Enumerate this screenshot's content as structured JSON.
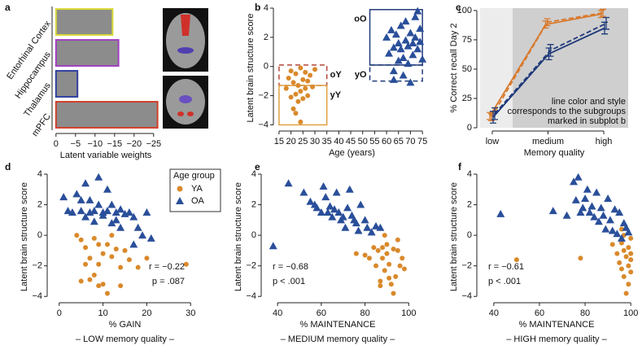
{
  "chart_data": [
    {
      "panel": "a",
      "type": "bar",
      "orientation": "horizontal",
      "categories": [
        "Entorhinal Cortex",
        "Hippocampus",
        "Thalamus",
        "mPFC"
      ],
      "values": [
        -14.5,
        -16,
        -5.5,
        -26
      ],
      "edge_colors": [
        "#d9d93a",
        "#a040c0",
        "#3040a0",
        "#d0402a"
      ],
      "color": "#8c8c8c",
      "xlabel": "Latent variable weights",
      "xlim": [
        1,
        -26.5
      ],
      "xticks": [
        0,
        {
          "value": -5,
          "label": "−5"
        },
        {
          "value": -10,
          "label": "−10"
        },
        {
          "value": -15,
          "label": "−15"
        },
        {
          "value": -20,
          "label": "−20"
        },
        {
          "value": -25,
          "label": "−25"
        }
      ]
    },
    {
      "panel": "b",
      "type": "scatter",
      "xlabel": "Age (years)",
      "ylabel": "Latent brain structure  score",
      "xlim": [
        14,
        77
      ],
      "xticks": [
        15,
        20,
        25,
        30,
        35,
        40,
        45,
        50,
        55,
        60,
        65,
        70,
        75
      ],
      "ylim": [
        -4.2,
        4
      ],
      "yticks": [
        {
          "value": -4,
          "label": "−4"
        },
        {
          "value": -2,
          "label": "−2"
        },
        0,
        2,
        4
      ],
      "series": [
        {
          "color": "#d9892b",
          "marker": "circle",
          "x": [
            18,
            19,
            20,
            20,
            21,
            21,
            22,
            22,
            23,
            23,
            24,
            24,
            24,
            25,
            25,
            26,
            26,
            27,
            27,
            28,
            29,
            30,
            22
          ],
          "y": [
            -1.5,
            -0.8,
            -2.1,
            -0.3,
            -1.1,
            -2.9,
            -1.9,
            -0.5,
            -2.4,
            -1.3,
            -0.1,
            -1.7,
            -3.8,
            -0.9,
            -2.2,
            -1.5,
            -0.4,
            -2.0,
            -1.0,
            -0.6,
            -1.4,
            -0.2,
            -3.2
          ]
        },
        {
          "color": "#2a4f9a",
          "marker": "triangle",
          "x": [
            60,
            61,
            62,
            63,
            63,
            64,
            65,
            65,
            66,
            66,
            67,
            67,
            68,
            68,
            69,
            69,
            70,
            70,
            71,
            71,
            72,
            72,
            73,
            73,
            74,
            74,
            75,
            63
          ],
          "y": [
            2.0,
            0.9,
            2.5,
            1.3,
            -0.3,
            2.2,
            1.6,
            0.4,
            2.8,
            1.2,
            0.6,
            -0.6,
            1.8,
            3.1,
            1.4,
            0.2,
            2.3,
            -1.1,
            1.6,
            0.8,
            3.4,
            2.0,
            1.2,
            3.8,
            2.6,
            1.7,
            0.5,
            -0.9
          ]
        }
      ],
      "boxes": [
        {
          "label": "oY",
          "color": "#b5483a",
          "dashed": true,
          "xlim": [
            15,
            35
          ],
          "ylim": [
            -1.3,
            0.1
          ]
        },
        {
          "label": "yY",
          "color": "#e0a040",
          "dashed": false,
          "xlim": [
            15,
            35
          ],
          "ylim": [
            -4,
            -1.3
          ]
        },
        {
          "label": "oO",
          "color": "#1f3a7a",
          "dashed": false,
          "xlim": [
            53,
            75
          ],
          "ylim": [
            0.1,
            3.9
          ]
        },
        {
          "label": "yO",
          "color": "#1f3a7a",
          "dashed": true,
          "xlim": [
            53,
            75
          ],
          "ylim": [
            -1,
            0.1
          ]
        }
      ]
    },
    {
      "panel": "c",
      "type": "line",
      "categories": [
        "low",
        "medium",
        "high"
      ],
      "xlabel": "Memory quality",
      "ylabel": "% Correct recall Day 2",
      "ylim": [
        0,
        102
      ],
      "yticks": [
        0,
        25,
        50,
        75,
        100
      ],
      "annotation": [
        "line color and style",
        "corresponds to the subgroups",
        "marked in subplot b"
      ],
      "series": [
        {
          "color": "#d9792b",
          "dashed": false,
          "values": [
            10,
            88,
            97
          ],
          "errors": [
            3,
            3,
            3
          ]
        },
        {
          "color": "#d9792b",
          "dashed": true,
          "values": [
            9,
            90,
            98
          ],
          "errors": [
            3,
            3,
            3
          ]
        },
        {
          "color": "#1f3a7a",
          "dashed": false,
          "values": [
            9,
            63,
            85
          ],
          "errors": [
            5,
            5,
            5
          ]
        },
        {
          "color": "#1f3a7a",
          "dashed": true,
          "values": [
            12,
            66,
            89
          ],
          "errors": [
            5,
            5,
            5
          ]
        }
      ]
    },
    {
      "panel": "d",
      "type": "scatter",
      "xlabel": "% GAIN",
      "xlabel2": "– LOW memory quality –",
      "ylabel": "Latent brain structure  score",
      "xlim": [
        -2,
        32
      ],
      "xticks": [
        0,
        10,
        20,
        30
      ],
      "ylim": [
        -4.2,
        4
      ],
      "yticks": [
        {
          "value": -4,
          "label": "−4"
        },
        {
          "value": -2,
          "label": "−2"
        },
        0,
        2,
        4
      ],
      "legend_title": "Age group",
      "stats": [
        "r = −0.22",
        "p = .087"
      ],
      "series": [
        {
          "name": "YA",
          "color": "#d9892b",
          "marker": "circle",
          "x": [
            4,
            5,
            6,
            7,
            8,
            8,
            9,
            9,
            10,
            10,
            11,
            11,
            12,
            12,
            13,
            14,
            15,
            16,
            18,
            20,
            29,
            5,
            7,
            9,
            6,
            14
          ],
          "y": [
            0,
            -0.3,
            -0.8,
            -1.5,
            -0.2,
            -2.6,
            -0.6,
            -1.9,
            -3.2,
            -1.2,
            -3.8,
            -0.6,
            0,
            -1.4,
            -0.9,
            -2.1,
            -1.0,
            -1.6,
            -2.1,
            -1.5,
            -1.9,
            -3.0,
            -2.9,
            -3.3,
            -1.9,
            -3.3
          ]
        },
        {
          "name": "OA",
          "color": "#2a4f9a",
          "marker": "triangle",
          "x": [
            1,
            2,
            3,
            4,
            5,
            5,
            6,
            6,
            7,
            7,
            8,
            8,
            9,
            9,
            10,
            10,
            11,
            11,
            12,
            13,
            13,
            14,
            15,
            16,
            17,
            18,
            19,
            20,
            21,
            17,
            14,
            12
          ],
          "y": [
            2.5,
            1.6,
            1.5,
            2.7,
            2.3,
            1.6,
            3.4,
            1.2,
            2.3,
            1.5,
            1.6,
            0.9,
            2.0,
            3.8,
            1.5,
            1.3,
            3.0,
            1.6,
            2.0,
            1.5,
            1.0,
            1.7,
            1.4,
            1.5,
            1.2,
            0.5,
            0,
            1.5,
            -0.2,
            -0.6,
            0.5,
            0.8
          ]
        }
      ]
    },
    {
      "panel": "e",
      "type": "scatter",
      "xlabel": "% MAINTENANCE",
      "xlabel2": "– MEDIUM memory quality –",
      "ylabel": "Latent brain structure  score",
      "xlim": [
        34,
        101
      ],
      "xticks": [
        40,
        60,
        80,
        100
      ],
      "ylim": [
        -4.2,
        4
      ],
      "yticks": [
        {
          "value": -4,
          "label": "−4"
        },
        {
          "value": -2,
          "label": "−2"
        },
        0,
        2,
        4
      ],
      "stats": [
        "r = −0.68",
        "p < .001"
      ],
      "series": [
        {
          "color": "#d9892b",
          "marker": "circle",
          "x": [
            76,
            80,
            82,
            84,
            85,
            86,
            87,
            88,
            88,
            89,
            90,
            90,
            91,
            92,
            93,
            94,
            95,
            96,
            97,
            98,
            93,
            89,
            95,
            91,
            87
          ],
          "y": [
            -1.2,
            -1.3,
            -1.5,
            -0.8,
            -2.0,
            -1.0,
            -3.0,
            -0.8,
            -1.5,
            -2.3,
            -0.6,
            -1.2,
            -1.9,
            -3.2,
            -0.9,
            -2.7,
            -1.0,
            -2.0,
            -1.5,
            -2.2,
            -3.8,
            0,
            -0.3,
            -2.8,
            -3.3
          ]
        },
        {
          "color": "#2a4f9a",
          "marker": "triangle",
          "x": [
            38,
            45,
            52,
            55,
            57,
            58,
            60,
            61,
            62,
            63,
            64,
            65,
            66,
            67,
            68,
            69,
            70,
            71,
            72,
            73,
            74,
            75,
            76,
            77,
            78,
            80,
            81,
            83,
            85,
            87
          ],
          "y": [
            -0.7,
            3.4,
            2.8,
            2.2,
            2.0,
            1.8,
            1.5,
            3.2,
            2.5,
            1.5,
            1.9,
            1.2,
            1.7,
            2.8,
            1.5,
            1.0,
            1.2,
            0.5,
            1.8,
            3.0,
            1.3,
            1.0,
            0.8,
            0.3,
            2.0,
            1.0,
            0.5,
            0.2,
            0.6,
            0.5
          ]
        }
      ]
    },
    {
      "panel": "f",
      "type": "scatter",
      "xlabel": "% MAINTENANCE",
      "xlabel2": "– HIGH memory quality –",
      "ylabel": "Latent brain structure  score",
      "xlim": [
        34,
        101
      ],
      "xticks": [
        40,
        60,
        80,
        100
      ],
      "ylim": [
        -4.2,
        4
      ],
      "yticks": [
        {
          "value": -4,
          "label": "−4"
        },
        {
          "value": -2,
          "label": "−2"
        },
        0,
        2,
        4
      ],
      "stats": [
        "r = −0.61",
        "p < .001"
      ],
      "series": [
        {
          "color": "#d9892b",
          "marker": "circle",
          "x": [
            50,
            78,
            92,
            94,
            95,
            96,
            96,
            97,
            97,
            98,
            98,
            99,
            99,
            100,
            100,
            100,
            97,
            99,
            100,
            96
          ],
          "y": [
            -1.6,
            -1.5,
            -0.6,
            -1.2,
            -1.8,
            -0.5,
            -2.2,
            -1.0,
            -2.7,
            -1.4,
            -3.8,
            -0.8,
            -2.0,
            -1.6,
            -2.4,
            -0.2,
            0,
            -3.2,
            -1.2,
            0.4
          ]
        },
        {
          "color": "#2a4f9a",
          "marker": "triangle",
          "x": [
            43,
            66,
            72,
            75,
            76,
            77,
            78,
            79,
            80,
            81,
            82,
            83,
            84,
            85,
            86,
            87,
            88,
            89,
            90,
            91,
            92,
            93,
            94,
            95,
            96,
            97,
            98,
            99
          ],
          "y": [
            1.4,
            1.6,
            1.3,
            3.5,
            2.3,
            3.8,
            1.5,
            1.8,
            2.4,
            3.0,
            1.5,
            1.9,
            1.2,
            2.8,
            0.9,
            1.8,
            1.3,
            0.4,
            2.4,
            1.0,
            0.3,
            1.7,
            0.1,
            1.5,
            -0.2,
            0.8,
            0.5,
            0.2
          ]
        }
      ]
    }
  ]
}
